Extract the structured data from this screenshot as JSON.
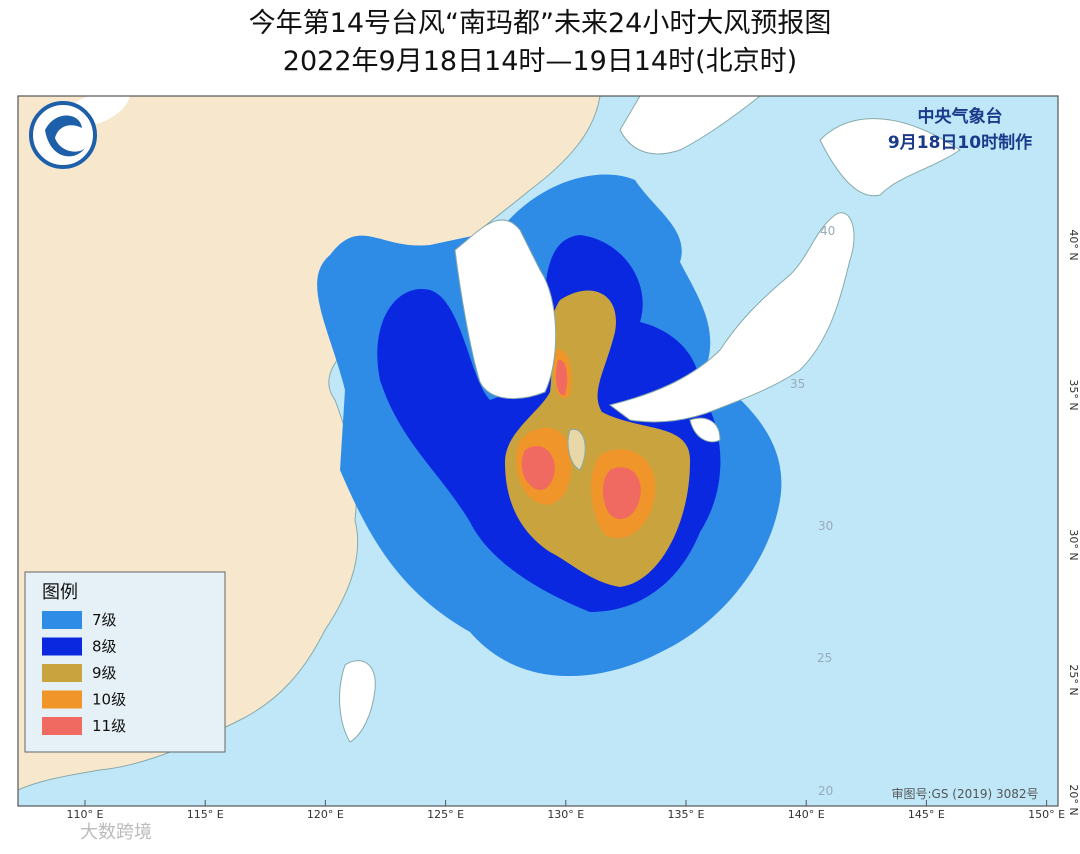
{
  "header": {
    "title": "今年第14号台风“南玛都”未来24小时大风预报图",
    "subtitle": "2022年9月18日14时—19日14时(北京时)"
  },
  "agency": {
    "name": "中央气象台",
    "time": "9月18日10时制作"
  },
  "legend": {
    "title": "图例",
    "items": [
      {
        "label": "7级",
        "color": "#2e8be6"
      },
      {
        "label": "8级",
        "color": "#0a28e0"
      },
      {
        "label": "9级",
        "color": "#c9a43e"
      },
      {
        "label": "10级",
        "color": "#f0952a"
      },
      {
        "label": "11级",
        "color": "#f06a62"
      }
    ]
  },
  "map": {
    "lon_labels": [
      "110° E",
      "115° E",
      "120° E",
      "125° E",
      "130° E",
      "135° E",
      "140° E",
      "145° E",
      "150° E"
    ],
    "lat_labels": [
      "40° N",
      "35° N",
      "30° N",
      "25° N",
      "20° N"
    ],
    "inner_labels": [
      "40",
      "35",
      "30",
      "25",
      "20"
    ],
    "approval": "审图号:GS (2019) 3082号"
  },
  "watermark": "大数跨境"
}
